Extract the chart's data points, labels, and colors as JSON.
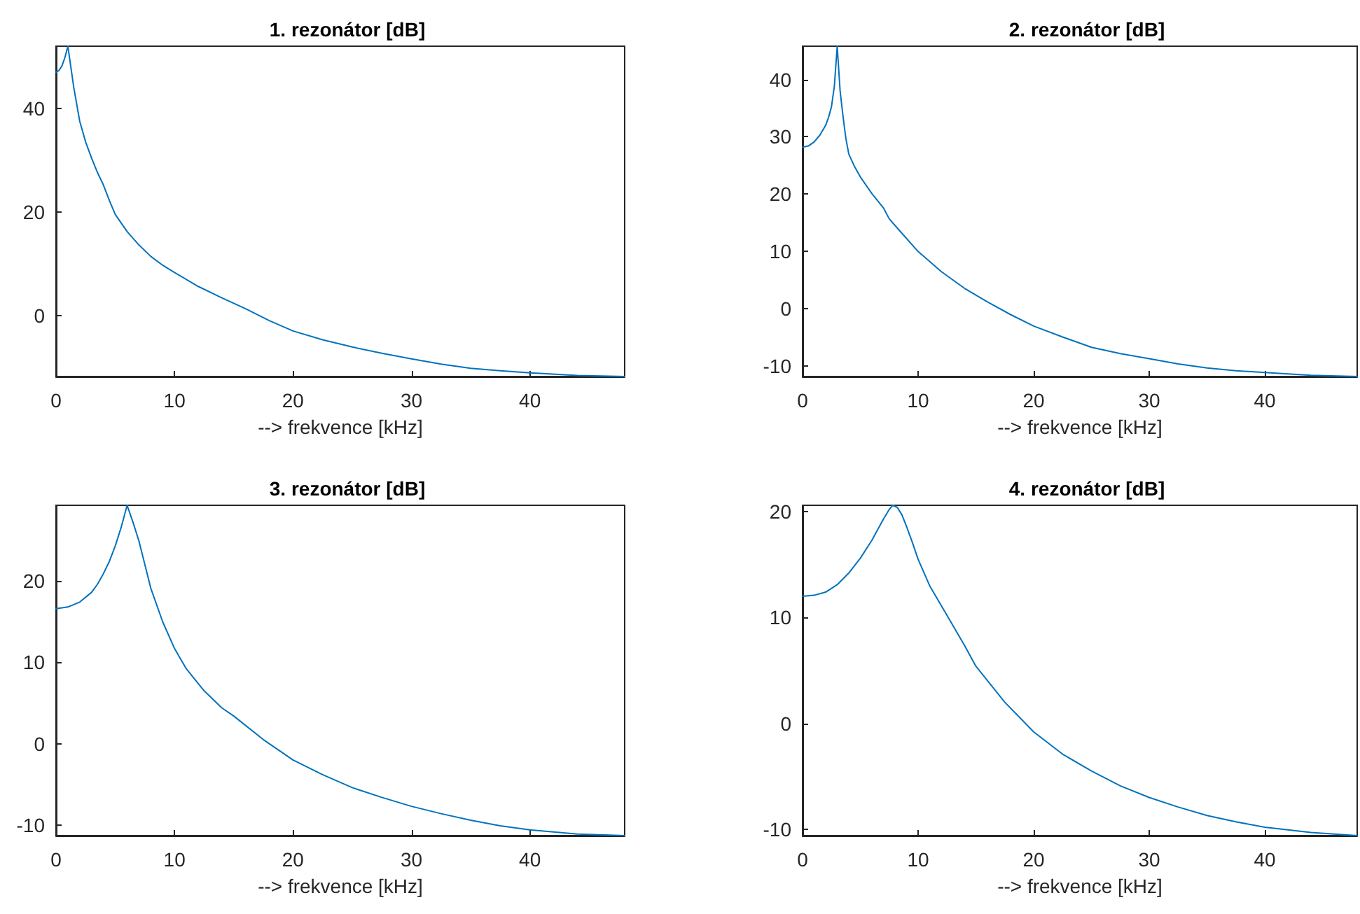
{
  "chart_data": [
    {
      "type": "line",
      "title": "1. rezonátor [dB]",
      "xlabel": "--> frekvence [kHz]",
      "xlim": [
        0,
        48
      ],
      "xticks": [
        0,
        10,
        20,
        30,
        40
      ],
      "ylim": [
        -11.8,
        52
      ],
      "yticks": [
        0,
        20,
        40
      ],
      "grid": false,
      "marker": "none",
      "series": [
        {
          "color": "#0072bd",
          "x": [
            0,
            0.25,
            0.5,
            0.75,
            1,
            1.25,
            1.5,
            2,
            2.5,
            3,
            3.5,
            4,
            4.5,
            5,
            6,
            7,
            8,
            9,
            10,
            12,
            14,
            16,
            18,
            20,
            22.5,
            25,
            27.5,
            30,
            32.5,
            35,
            37.5,
            40,
            44,
            48
          ],
          "values": [
            47,
            47.3,
            48.2,
            49.8,
            52,
            48,
            44,
            37.5,
            33.5,
            30.4,
            27.6,
            25.2,
            22.2,
            19.5,
            16.2,
            13.6,
            11.4,
            9.7,
            8.3,
            5.6,
            3.4,
            1.3,
            -1.0,
            -3,
            -4.7,
            -6.1,
            -7.3,
            -8.4,
            -9.4,
            -10.2,
            -10.7,
            -11.1,
            -11.6,
            -11.8
          ]
        }
      ]
    },
    {
      "type": "line",
      "title": "2. rezonátor [dB]",
      "xlabel": "--> frekvence [kHz]",
      "xlim": [
        0,
        48
      ],
      "xticks": [
        0,
        10,
        20,
        30,
        40
      ],
      "ylim": [
        -11.8,
        45.8
      ],
      "yticks": [
        -10,
        0,
        10,
        20,
        30,
        40
      ],
      "grid": false,
      "marker": "none",
      "series": [
        {
          "color": "#0072bd",
          "x": [
            0,
            0.5,
            1,
            1.5,
            2,
            2.25,
            2.5,
            2.75,
            3,
            3.25,
            3.5,
            3.75,
            4,
            4.5,
            5,
            6,
            7,
            7.5,
            8.5,
            10,
            12,
            14,
            16,
            18,
            20,
            22.5,
            25,
            27.5,
            30,
            32.5,
            35,
            37.5,
            40,
            44,
            48
          ],
          "values": [
            28.2,
            28.4,
            29.1,
            30.3,
            32,
            33.4,
            35.2,
            38.8,
            45.8,
            38,
            33.6,
            29.7,
            27,
            24.8,
            23,
            20.1,
            17.6,
            15.7,
            13.4,
            10,
            6.5,
            3.6,
            1.2,
            -1.0,
            -3,
            -4.9,
            -6.7,
            -7.8,
            -8.7,
            -9.6,
            -10.3,
            -10.8,
            -11.1,
            -11.6,
            -11.8
          ]
        }
      ]
    },
    {
      "type": "line",
      "title": "3. rezonátor [dB]",
      "xlabel": "--> frekvence [kHz]",
      "xlim": [
        0,
        48
      ],
      "xticks": [
        0,
        10,
        20,
        30,
        40
      ],
      "ylim": [
        -11.3,
        29.3
      ],
      "yticks": [
        -10,
        0,
        10,
        20
      ],
      "grid": false,
      "marker": "none",
      "series": [
        {
          "color": "#0072bd",
          "x": [
            0,
            1,
            2,
            3,
            3.5,
            4,
            4.5,
            5,
            5.5,
            6,
            6.5,
            7,
            7.5,
            8,
            9,
            10,
            11,
            12.5,
            14,
            15,
            17.5,
            20,
            22.5,
            25,
            27.5,
            30,
            32.5,
            35,
            37.5,
            40,
            44,
            48
          ],
          "values": [
            16.6,
            16.8,
            17.4,
            18.6,
            19.6,
            20.9,
            22.4,
            24.3,
            26.6,
            29.3,
            27.2,
            24.9,
            22,
            19.1,
            15,
            11.7,
            9.2,
            6.5,
            4.4,
            3.4,
            0.5,
            -2,
            -3.8,
            -5.4,
            -6.6,
            -7.7,
            -8.6,
            -9.4,
            -10.1,
            -10.6,
            -11.1,
            -11.3
          ]
        }
      ]
    },
    {
      "type": "line",
      "title": "4. rezonátor [dB]",
      "xlabel": "--> frekvence [kHz]",
      "xlim": [
        0,
        48
      ],
      "xticks": [
        0,
        10,
        20,
        30,
        40
      ],
      "ylim": [
        -10.6,
        20.6
      ],
      "yticks": [
        -10,
        0,
        10,
        20
      ],
      "grid": false,
      "marker": "none",
      "series": [
        {
          "color": "#0072bd",
          "x": [
            0,
            1,
            2,
            3,
            4,
            5,
            6,
            6.5,
            7,
            7.5,
            7.8,
            8.2,
            8.6,
            9,
            9.5,
            10,
            11,
            12.5,
            14,
            15,
            17.5,
            20,
            22.5,
            25,
            27.5,
            30,
            32.5,
            35,
            37.5,
            40,
            44,
            48
          ],
          "values": [
            12.0,
            12.1,
            12.4,
            13.1,
            14.2,
            15.6,
            17.3,
            18.3,
            19.3,
            20.2,
            20.6,
            20.4,
            19.7,
            18.6,
            17.1,
            15.5,
            13,
            10.2,
            7.4,
            5.4,
            2,
            -0.8,
            -2.9,
            -4.5,
            -5.9,
            -7.0,
            -7.9,
            -8.7,
            -9.3,
            -9.8,
            -10.3,
            -10.6
          ]
        }
      ]
    }
  ]
}
